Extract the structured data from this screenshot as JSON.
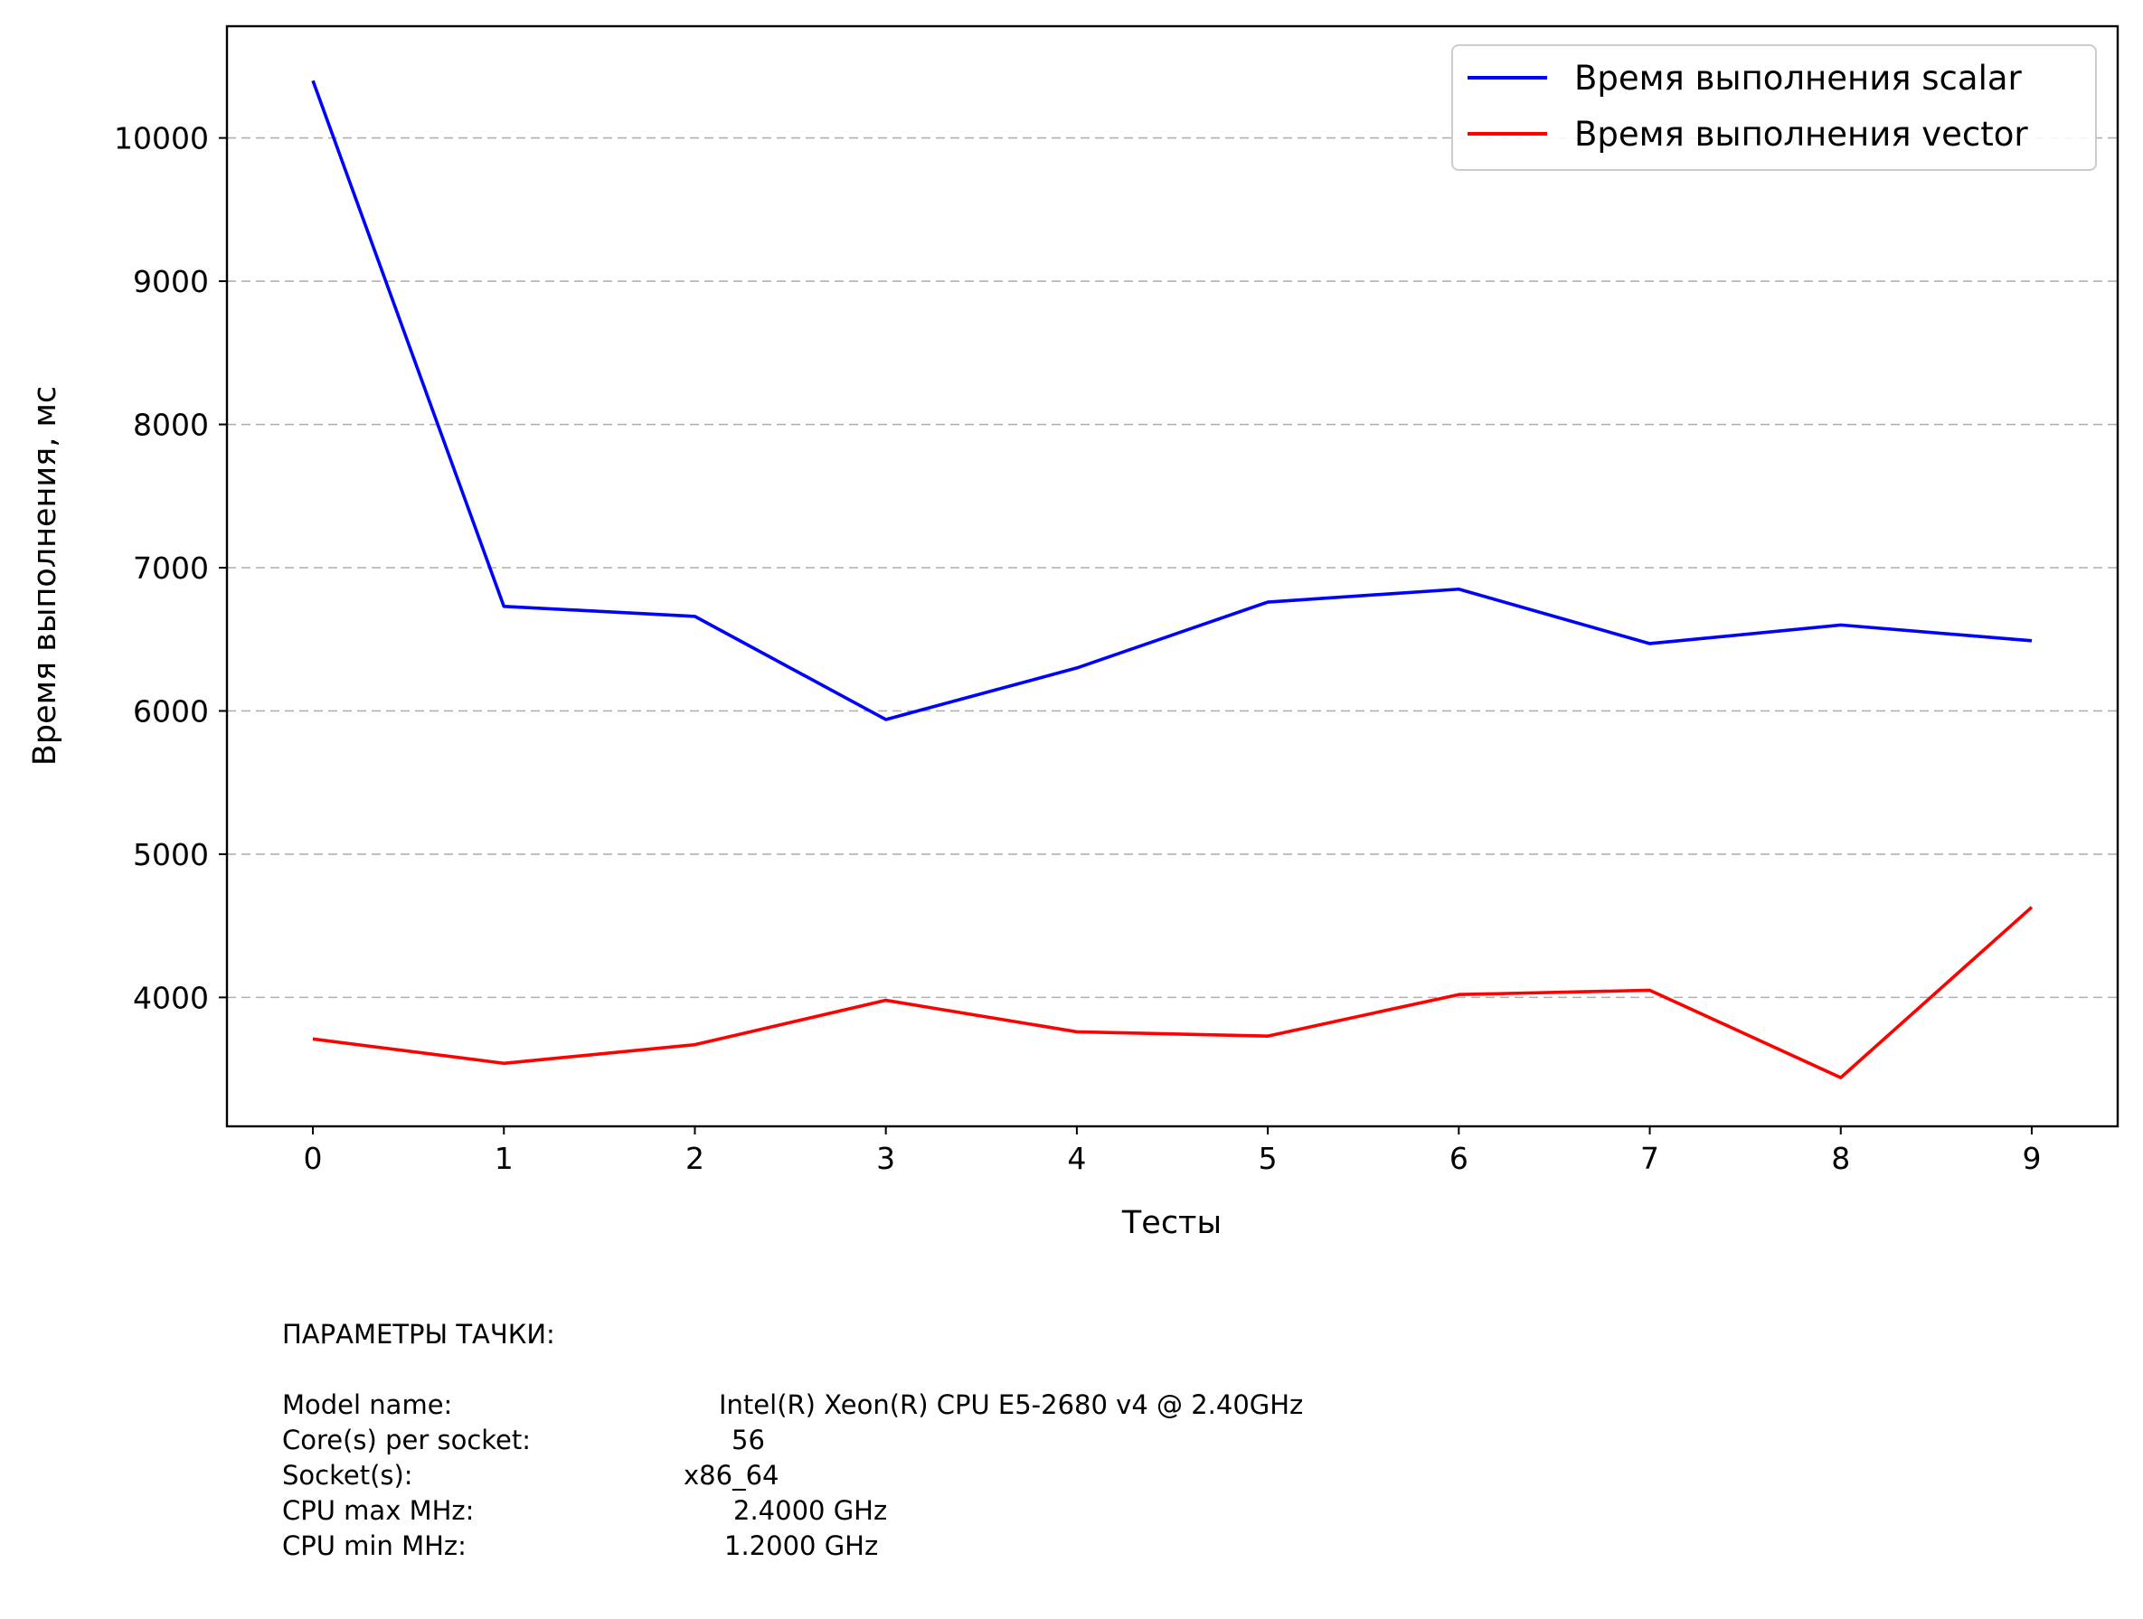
{
  "chart_data": {
    "type": "line",
    "xlabel": "Тесты",
    "ylabel": "Время выполнения, мс",
    "x": [
      0,
      1,
      2,
      3,
      4,
      5,
      6,
      7,
      8,
      9
    ],
    "xlim": [
      -0.45,
      9.45
    ],
    "ylim": [
      3100,
      10780
    ],
    "yticks": [
      4000,
      5000,
      6000,
      7000,
      8000,
      9000,
      10000
    ],
    "grid": "y-dashed",
    "legend_position": "top-right",
    "series": [
      {
        "name": "Время выполнения scalar",
        "color": "#0000ff",
        "values": [
          10400,
          6730,
          6660,
          5940,
          6300,
          6760,
          6850,
          6470,
          6600,
          6490
        ]
      },
      {
        "name": "Время выполнения vector",
        "color": "#ff0000",
        "values": [
          3710,
          3540,
          3670,
          3980,
          3760,
          3730,
          4020,
          4050,
          3440,
          4630
        ]
      }
    ]
  },
  "machine_info": {
    "heading": "ПАРАМЕТРЫ ТАЧКИ:",
    "rows": [
      {
        "label": "Model name:",
        "value": "Intel(R) Xeon(R) CPU E5-2680 v4 @ 2.40GHz"
      },
      {
        "label": "Core(s) per socket:",
        "value": "56"
      },
      {
        "label": "Socket(s):",
        "value": "x86_64"
      },
      {
        "label": "CPU max MHz:",
        "value": "2.4000 GHz"
      },
      {
        "label": "CPU min MHz:",
        "value": "1.2000 GHz"
      }
    ]
  }
}
